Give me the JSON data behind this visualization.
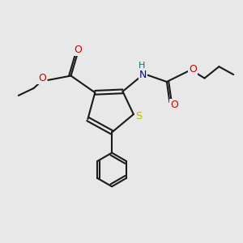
{
  "bg_color": "#e8e8e8",
  "bond_color": "#1a1a1a",
  "S_color": "#b8b800",
  "N_color": "#0000cc",
  "O_color": "#cc0000",
  "H_color": "#007070",
  "line_width": 1.5,
  "figsize": [
    3.0,
    3.0
  ],
  "dpi": 100,
  "font_size": 7.5,
  "xlim": [
    0,
    10
  ],
  "ylim": [
    0,
    10
  ]
}
